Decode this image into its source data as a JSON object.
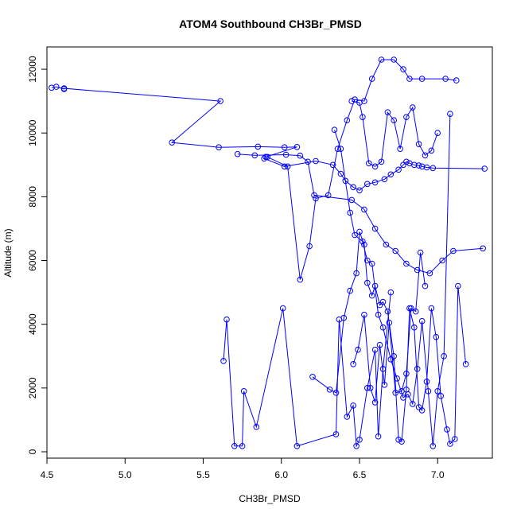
{
  "chart_data": {
    "type": "line",
    "title": "ATOM4 Southbound CH3Br_PMSD",
    "xlabel": "CH3Br_PMSD",
    "ylabel": "Altitude (m)",
    "xlim": [
      4.5,
      7.35
    ],
    "ylim": [
      -200,
      12700
    ],
    "xticks": [
      4.5,
      5.0,
      5.5,
      6.0,
      6.5,
      7.0
    ],
    "xtick_labels": [
      "4.5",
      "5.0",
      "5.5",
      "6.0",
      "6.5",
      "7.0"
    ],
    "yticks": [
      0,
      2000,
      4000,
      6000,
      8000,
      10000,
      12000
    ],
    "ytick_labels": [
      "0",
      "2000",
      "4000",
      "6000",
      "8000",
      "10000",
      "12000"
    ],
    "grid": false,
    "series_color": "#0000ff",
    "marker": "open-circle",
    "series": [
      {
        "x": [
          4.53,
          4.56,
          4.61,
          4.61,
          5.61,
          5.3,
          5.6,
          5.85,
          6.02,
          6.1,
          5.9,
          5.89,
          6.02,
          6.22,
          6.33,
          6.38,
          6.41,
          6.46,
          6.5,
          6.55,
          6.6,
          6.66,
          6.7,
          6.75,
          6.78,
          6.8,
          6.82,
          6.85,
          6.88,
          6.9,
          6.93,
          6.97,
          7.3
        ],
        "y": [
          11420,
          11450,
          11380,
          11400,
          11000,
          9700,
          9550,
          9570,
          9550,
          9560,
          9250,
          9200,
          8950,
          9120,
          9000,
          8720,
          8500,
          8300,
          8200,
          8400,
          8450,
          8550,
          8700,
          8850,
          9000,
          9100,
          9050,
          9000,
          8980,
          8950,
          8920,
          8900,
          8880
        ]
      },
      {
        "x": [
          5.72,
          5.83,
          6.03,
          6.12,
          6.17,
          6.21,
          6.45,
          6.53,
          6.6,
          6.67,
          6.73,
          6.8,
          6.87,
          6.95,
          7.03,
          7.1,
          7.29
        ],
        "y": [
          9340,
          9300,
          9320,
          9290,
          9100,
          8050,
          7900,
          7600,
          7000,
          6500,
          6300,
          5900,
          5700,
          5600,
          6000,
          6300,
          6380
        ]
      },
      {
        "x": [
          5.91,
          6.04,
          6.12,
          6.18,
          6.22,
          6.3,
          6.36,
          6.42,
          6.47,
          6.53,
          6.58,
          6.64,
          6.72,
          6.78,
          6.82,
          6.9,
          7.05,
          7.12
        ],
        "y": [
          9250,
          8950,
          5400,
          6450,
          7950,
          8050,
          9500,
          10400,
          11050,
          11000,
          11700,
          12300,
          12300,
          12000,
          11700,
          11700,
          11700,
          11650
        ]
      },
      {
        "x": [
          5.63,
          5.65,
          5.7,
          5.75,
          5.76,
          5.84,
          6.01,
          6.1,
          6.35,
          6.37,
          6.42,
          6.46,
          6.48,
          6.5,
          6.55,
          6.6,
          6.62,
          6.65,
          6.7
        ],
        "y": [
          2850,
          4150,
          180,
          180,
          1900,
          780,
          4500,
          180,
          550,
          4150,
          1100,
          1450,
          180,
          380,
          2000,
          3200,
          480,
          2600,
          5000
        ]
      },
      {
        "x": [
          6.2,
          6.31,
          6.35,
          6.4,
          6.44,
          6.48,
          6.5,
          6.53,
          6.55,
          6.58,
          6.6,
          6.63,
          6.65,
          6.68,
          6.72,
          6.75,
          6.77,
          6.8,
          6.82,
          6.85,
          6.88,
          6.9,
          6.93,
          6.96,
          6.99,
          7.02,
          7.06,
          7.08,
          7.11,
          7.13,
          7.18
        ],
        "y": [
          2350,
          1950,
          1850,
          4200,
          5050,
          5600,
          6900,
          6500,
          5300,
          4900,
          5200,
          4600,
          4700,
          4400,
          3000,
          380,
          320,
          1950,
          4500,
          3900,
          1400,
          1300,
          2200,
          4500,
          3600,
          1750,
          700,
          250,
          400,
          5200,
          2750
        ]
      },
      {
        "x": [
          6.34,
          6.38,
          6.44,
          6.47,
          6.52,
          6.55,
          6.58,
          6.62,
          6.65,
          6.7,
          6.74,
          6.78,
          6.81,
          6.84,
          6.87,
          6.9,
          6.94,
          6.97,
          7.0,
          7.04,
          7.08
        ],
        "y": [
          10100,
          9500,
          7500,
          6800,
          6600,
          6000,
          5900,
          4300,
          3900,
          2900,
          2300,
          1700,
          1800,
          1500,
          2600,
          4100,
          1900,
          180,
          1900,
          3000,
          10600
        ]
      },
      {
        "x": [
          6.45,
          6.5,
          6.52,
          6.56,
          6.6,
          6.64,
          6.68,
          6.72,
          6.76,
          6.8,
          6.84,
          6.88,
          6.92,
          6.96,
          7.0
        ],
        "y": [
          11000,
          10950,
          10500,
          9050,
          8950,
          9100,
          10650,
          10400,
          9500,
          10500,
          10800,
          9650,
          9300,
          9450,
          10000
        ]
      },
      {
        "x": [
          6.46,
          6.49,
          6.53,
          6.57,
          6.6,
          6.63,
          6.66,
          6.69,
          6.73,
          6.77,
          6.8,
          6.83,
          6.86,
          6.89,
          6.92
        ],
        "y": [
          2750,
          3200,
          4300,
          2000,
          1550,
          3350,
          2100,
          4050,
          1850,
          1900,
          2450,
          4500,
          4400,
          6250,
          5200
        ]
      }
    ]
  }
}
